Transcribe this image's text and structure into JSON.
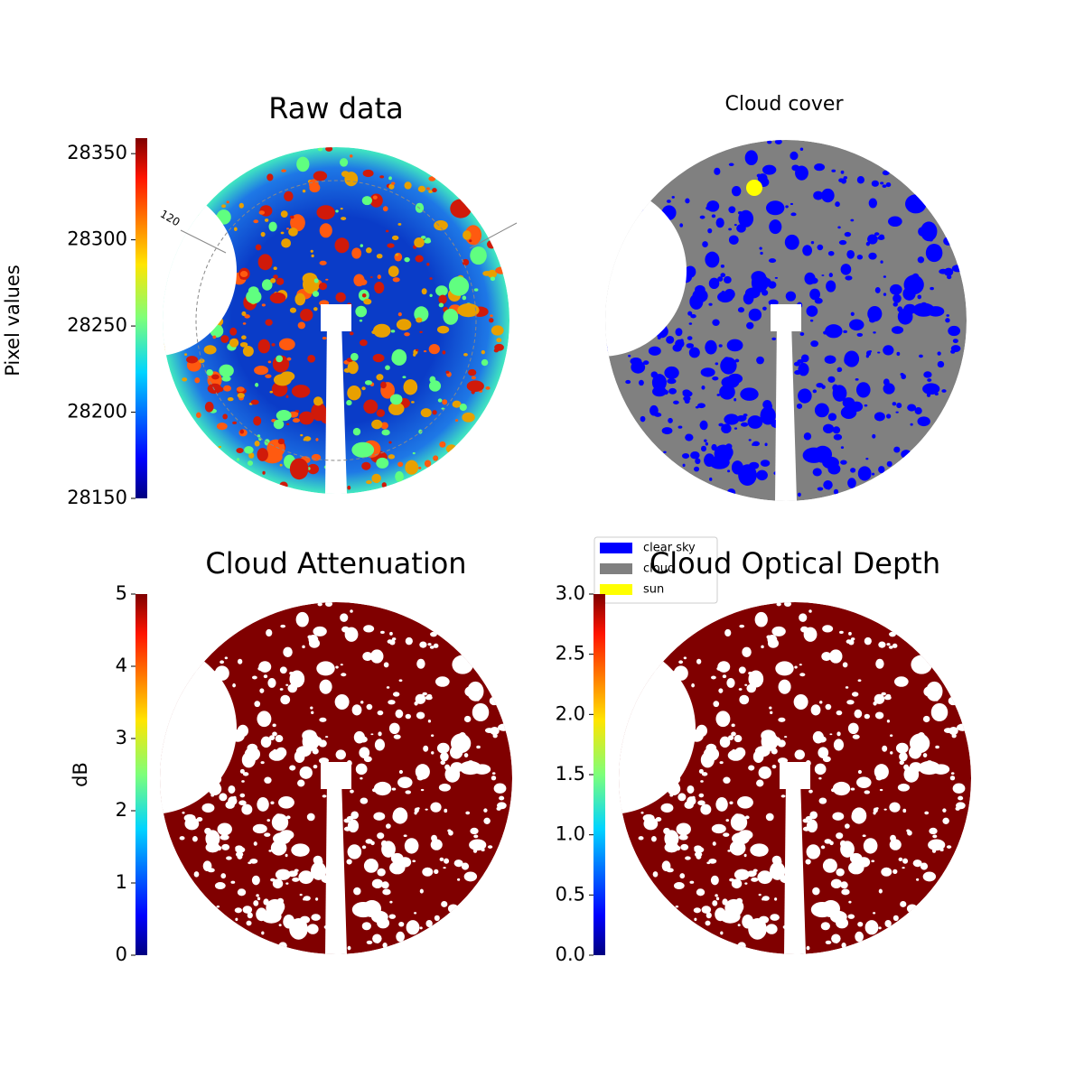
{
  "chart_data": [
    {
      "type": "image",
      "title": "Raw data",
      "colormap": "jet",
      "colorbar_label": "Pixel values",
      "clim": [
        28150,
        28359
      ],
      "cticks": [
        28150,
        28200,
        28250,
        28300,
        28350
      ],
      "annotations": [
        "120"
      ]
    },
    {
      "type": "image",
      "title": "Cloud cover",
      "legend": [
        {
          "name": "clear sky",
          "color": "#0000ff"
        },
        {
          "name": "cloud",
          "color": "#808080"
        },
        {
          "name": "sun",
          "color": "#ffff00"
        }
      ]
    },
    {
      "type": "image",
      "title": "Cloud Attenuation",
      "colormap": "jet",
      "colorbar_label": "dB",
      "clim": [
        0,
        5
      ],
      "cticks": [
        0,
        1,
        2,
        3,
        4,
        5
      ]
    },
    {
      "type": "image",
      "title": "Cloud Optical Depth",
      "colormap": "jet",
      "clim": [
        0,
        3
      ],
      "cticks": [
        {
          "value": 0,
          "label": "0.0"
        },
        0.5,
        {
          "value": 1,
          "label": "1.0"
        },
        1.5,
        {
          "value": 2,
          "label": "2.0"
        },
        2.5,
        {
          "value": 3,
          "label": "3.0"
        }
      ]
    }
  ]
}
